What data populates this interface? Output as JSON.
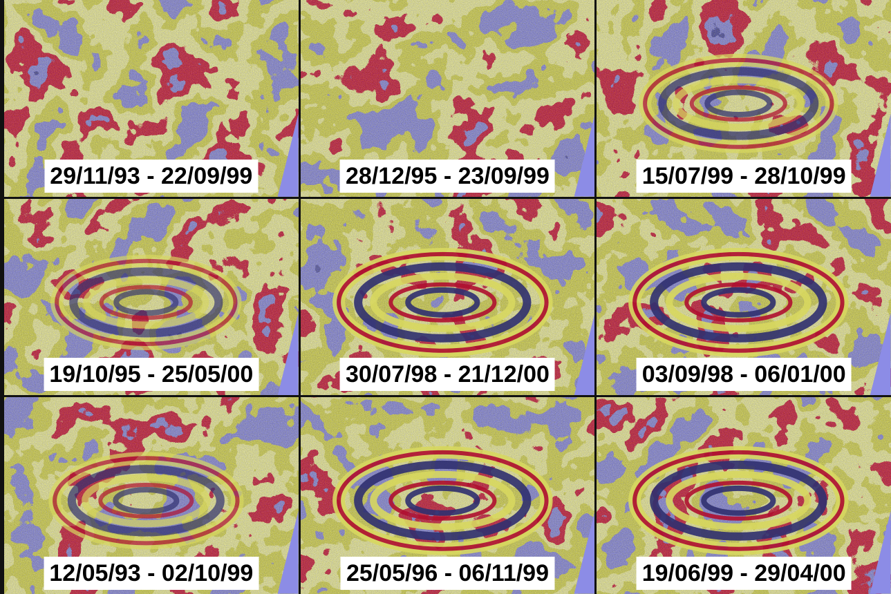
{
  "panels": [
    {
      "label": "29/11/93 - 22/09/99"
    },
    {
      "label": "28/12/95 - 23/09/99"
    },
    {
      "label": "15/07/99 - 28/10/99"
    },
    {
      "label": "19/10/95 - 25/05/00"
    },
    {
      "label": "30/07/98 - 21/12/00"
    },
    {
      "label": "03/09/98 - 06/01/00"
    },
    {
      "label": "12/05/93 - 02/10/99"
    },
    {
      "label": "25/05/96 - 06/11/99"
    },
    {
      "label": "19/06/99 - 29/04/00"
    }
  ]
}
